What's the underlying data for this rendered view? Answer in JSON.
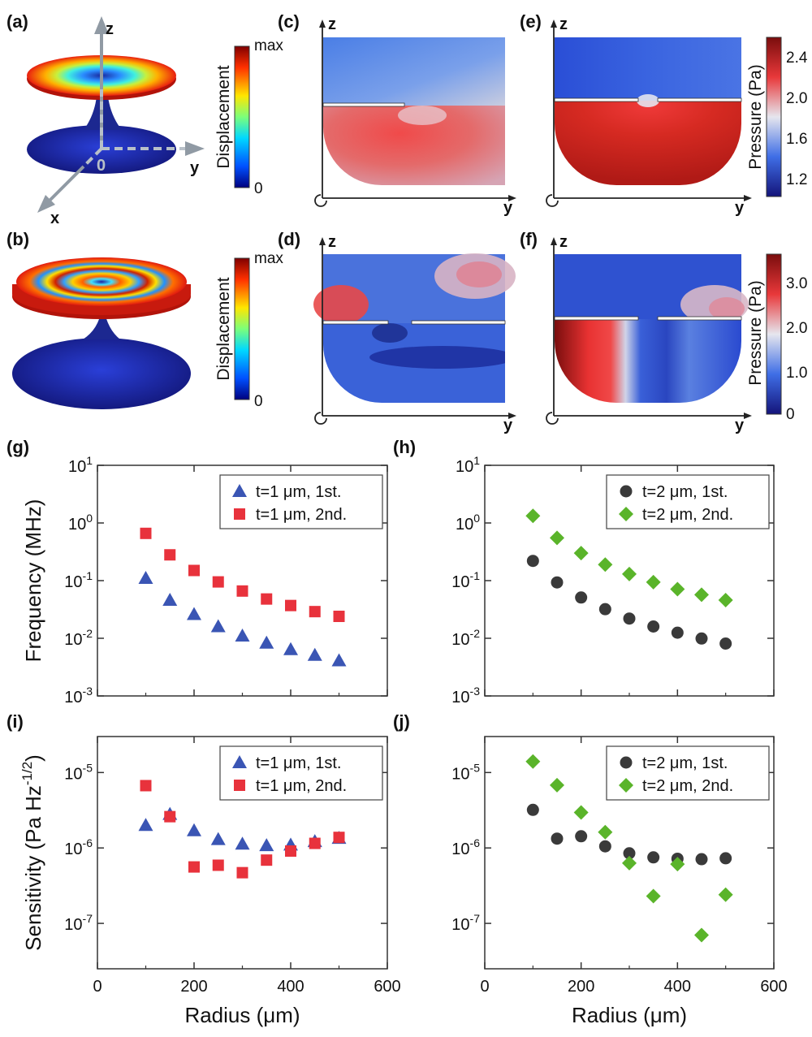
{
  "panel_labels": [
    "(a)",
    "(b)",
    "(c)",
    "(d)",
    "(e)",
    "(f)",
    "(g)",
    "(h)",
    "(i)",
    "(j)"
  ],
  "axis_letters": {
    "z": "z",
    "y": "y",
    "x": "x",
    "origin": "0"
  },
  "displacement_colorbar": {
    "title": "Displacement",
    "max_label": "max",
    "min_label": "0"
  },
  "pressure_colorbar_1": {
    "title": "Pressure (Pa)",
    "ticks": [
      "2.4",
      "2.0",
      "1.6",
      "1.2"
    ]
  },
  "pressure_colorbar_2": {
    "title": "Pressure (Pa)",
    "ticks": [
      "3.0",
      "2.0",
      "1.0",
      "0"
    ]
  },
  "colors": {
    "t1_first": "#3a55b4",
    "t1_second": "#e8323c",
    "t2_first": "#3a3a3a",
    "t2_second": "#5ab42a"
  },
  "chart_data": [
    {
      "panel": "(g)",
      "type": "scatter",
      "ylabel": "Frequency (MHz)",
      "xlabel": "",
      "yscale": "log",
      "xlim": [
        0,
        600
      ],
      "ylim": [
        0.001,
        10
      ],
      "xticks": [
        "0",
        "200",
        "400",
        "600"
      ],
      "yticks": [
        {
          "base": "10",
          "exp": "1"
        },
        {
          "base": "10",
          "exp": "0"
        },
        {
          "base": "10",
          "exp": "-1"
        },
        {
          "base": "10",
          "exp": "-2"
        },
        {
          "base": "10",
          "exp": "-3"
        }
      ],
      "legend": "top-right",
      "series": [
        {
          "name": "t=1 μm, 1st.",
          "marker": "triangle",
          "x": [
            100,
            150,
            200,
            250,
            300,
            350,
            400,
            450,
            500
          ],
          "y": [
            0.11,
            0.046,
            0.026,
            0.016,
            0.011,
            0.0083,
            0.0064,
            0.0051,
            0.0041
          ]
        },
        {
          "name": "t=1 μm, 2nd.",
          "marker": "square",
          "x": [
            100,
            150,
            200,
            250,
            300,
            350,
            400,
            450,
            500
          ],
          "y": [
            0.66,
            0.28,
            0.15,
            0.095,
            0.066,
            0.048,
            0.037,
            0.029,
            0.024
          ]
        }
      ]
    },
    {
      "panel": "(h)",
      "type": "scatter",
      "ylabel": "",
      "xlabel": "",
      "yscale": "log",
      "xlim": [
        0,
        600
      ],
      "ylim": [
        0.001,
        10
      ],
      "xticks": [
        "0",
        "200",
        "400",
        "600"
      ],
      "yticks": [
        {
          "base": "10",
          "exp": "1"
        },
        {
          "base": "10",
          "exp": "0"
        },
        {
          "base": "10",
          "exp": "-1"
        },
        {
          "base": "10",
          "exp": "-2"
        },
        {
          "base": "10",
          "exp": "-3"
        }
      ],
      "legend": "top-right",
      "series": [
        {
          "name": "t=2 μm, 1st.",
          "marker": "circle",
          "x": [
            100,
            150,
            200,
            250,
            300,
            350,
            400,
            450,
            500
          ],
          "y": [
            0.22,
            0.093,
            0.051,
            0.032,
            0.022,
            0.016,
            0.0125,
            0.0099,
            0.0081
          ]
        },
        {
          "name": "t=2 μm, 2nd.",
          "marker": "diamond",
          "x": [
            100,
            150,
            200,
            250,
            300,
            350,
            400,
            450,
            500
          ],
          "y": [
            1.33,
            0.55,
            0.3,
            0.19,
            0.13,
            0.094,
            0.071,
            0.057,
            0.046
          ]
        }
      ]
    },
    {
      "panel": "(i)",
      "type": "scatter",
      "ylabel": "Sensitivity (Pa Hz",
      "ylabel_sup": "-1/2",
      "ylabel_end": ")",
      "xlabel": "Radius (μm)",
      "yscale": "log",
      "xlim": [
        0,
        600
      ],
      "ylim": [
        2.5e-08,
        3e-05
      ],
      "xticks": [
        "0",
        "200",
        "400",
        "600"
      ],
      "yticks": [
        {
          "base": "10",
          "exp": "-5"
        },
        {
          "base": "10",
          "exp": "-6"
        },
        {
          "base": "10",
          "exp": "-7"
        }
      ],
      "legend": "top-right",
      "series": [
        {
          "name": "t=1 μm, 1st.",
          "marker": "triangle",
          "x": [
            100,
            150,
            200,
            250,
            300,
            350,
            400,
            450,
            500
          ],
          "y": [
            2e-06,
            2.8e-06,
            1.7e-06,
            1.3e-06,
            1.13e-06,
            1.08e-06,
            1.1e-06,
            1.22e-06,
            1.35e-06
          ]
        },
        {
          "name": "t=1 μm, 2nd.",
          "marker": "square",
          "x": [
            100,
            150,
            200,
            250,
            300,
            350,
            400,
            450,
            500
          ],
          "y": [
            6.7e-06,
            2.6e-06,
            5.6e-07,
            5.9e-07,
            4.7e-07,
            6.9e-07,
            9.1e-07,
            1.15e-06,
            1.38e-06
          ]
        }
      ]
    },
    {
      "panel": "(j)",
      "type": "scatter",
      "ylabel": "",
      "xlabel": "Radius (μm)",
      "yscale": "log",
      "xlim": [
        0,
        600
      ],
      "ylim": [
        2.5e-08,
        3e-05
      ],
      "xticks": [
        "0",
        "200",
        "400",
        "600"
      ],
      "yticks": [
        {
          "base": "10",
          "exp": "-5"
        },
        {
          "base": "10",
          "exp": "-6"
        },
        {
          "base": "10",
          "exp": "-7"
        }
      ],
      "legend": "top-right",
      "series": [
        {
          "name": "t=2 μm, 1st.",
          "marker": "circle",
          "x": [
            100,
            150,
            200,
            250,
            300,
            350,
            400,
            450,
            500
          ],
          "y": [
            3.2e-06,
            1.33e-06,
            1.43e-06,
            1.05e-06,
            8.5e-07,
            7.5e-07,
            7.2e-07,
            7.1e-07,
            7.3e-07
          ]
        },
        {
          "name": "t=2 μm, 2nd.",
          "marker": "diamond",
          "x": [
            100,
            150,
            200,
            250,
            300,
            350,
            400,
            450,
            500
          ],
          "y": [
            1.4e-05,
            6.8e-06,
            2.95e-06,
            1.62e-06,
            6.3e-07,
            2.3e-07,
            6.1e-07,
            7e-08,
            2.4e-07
          ]
        }
      ]
    }
  ]
}
